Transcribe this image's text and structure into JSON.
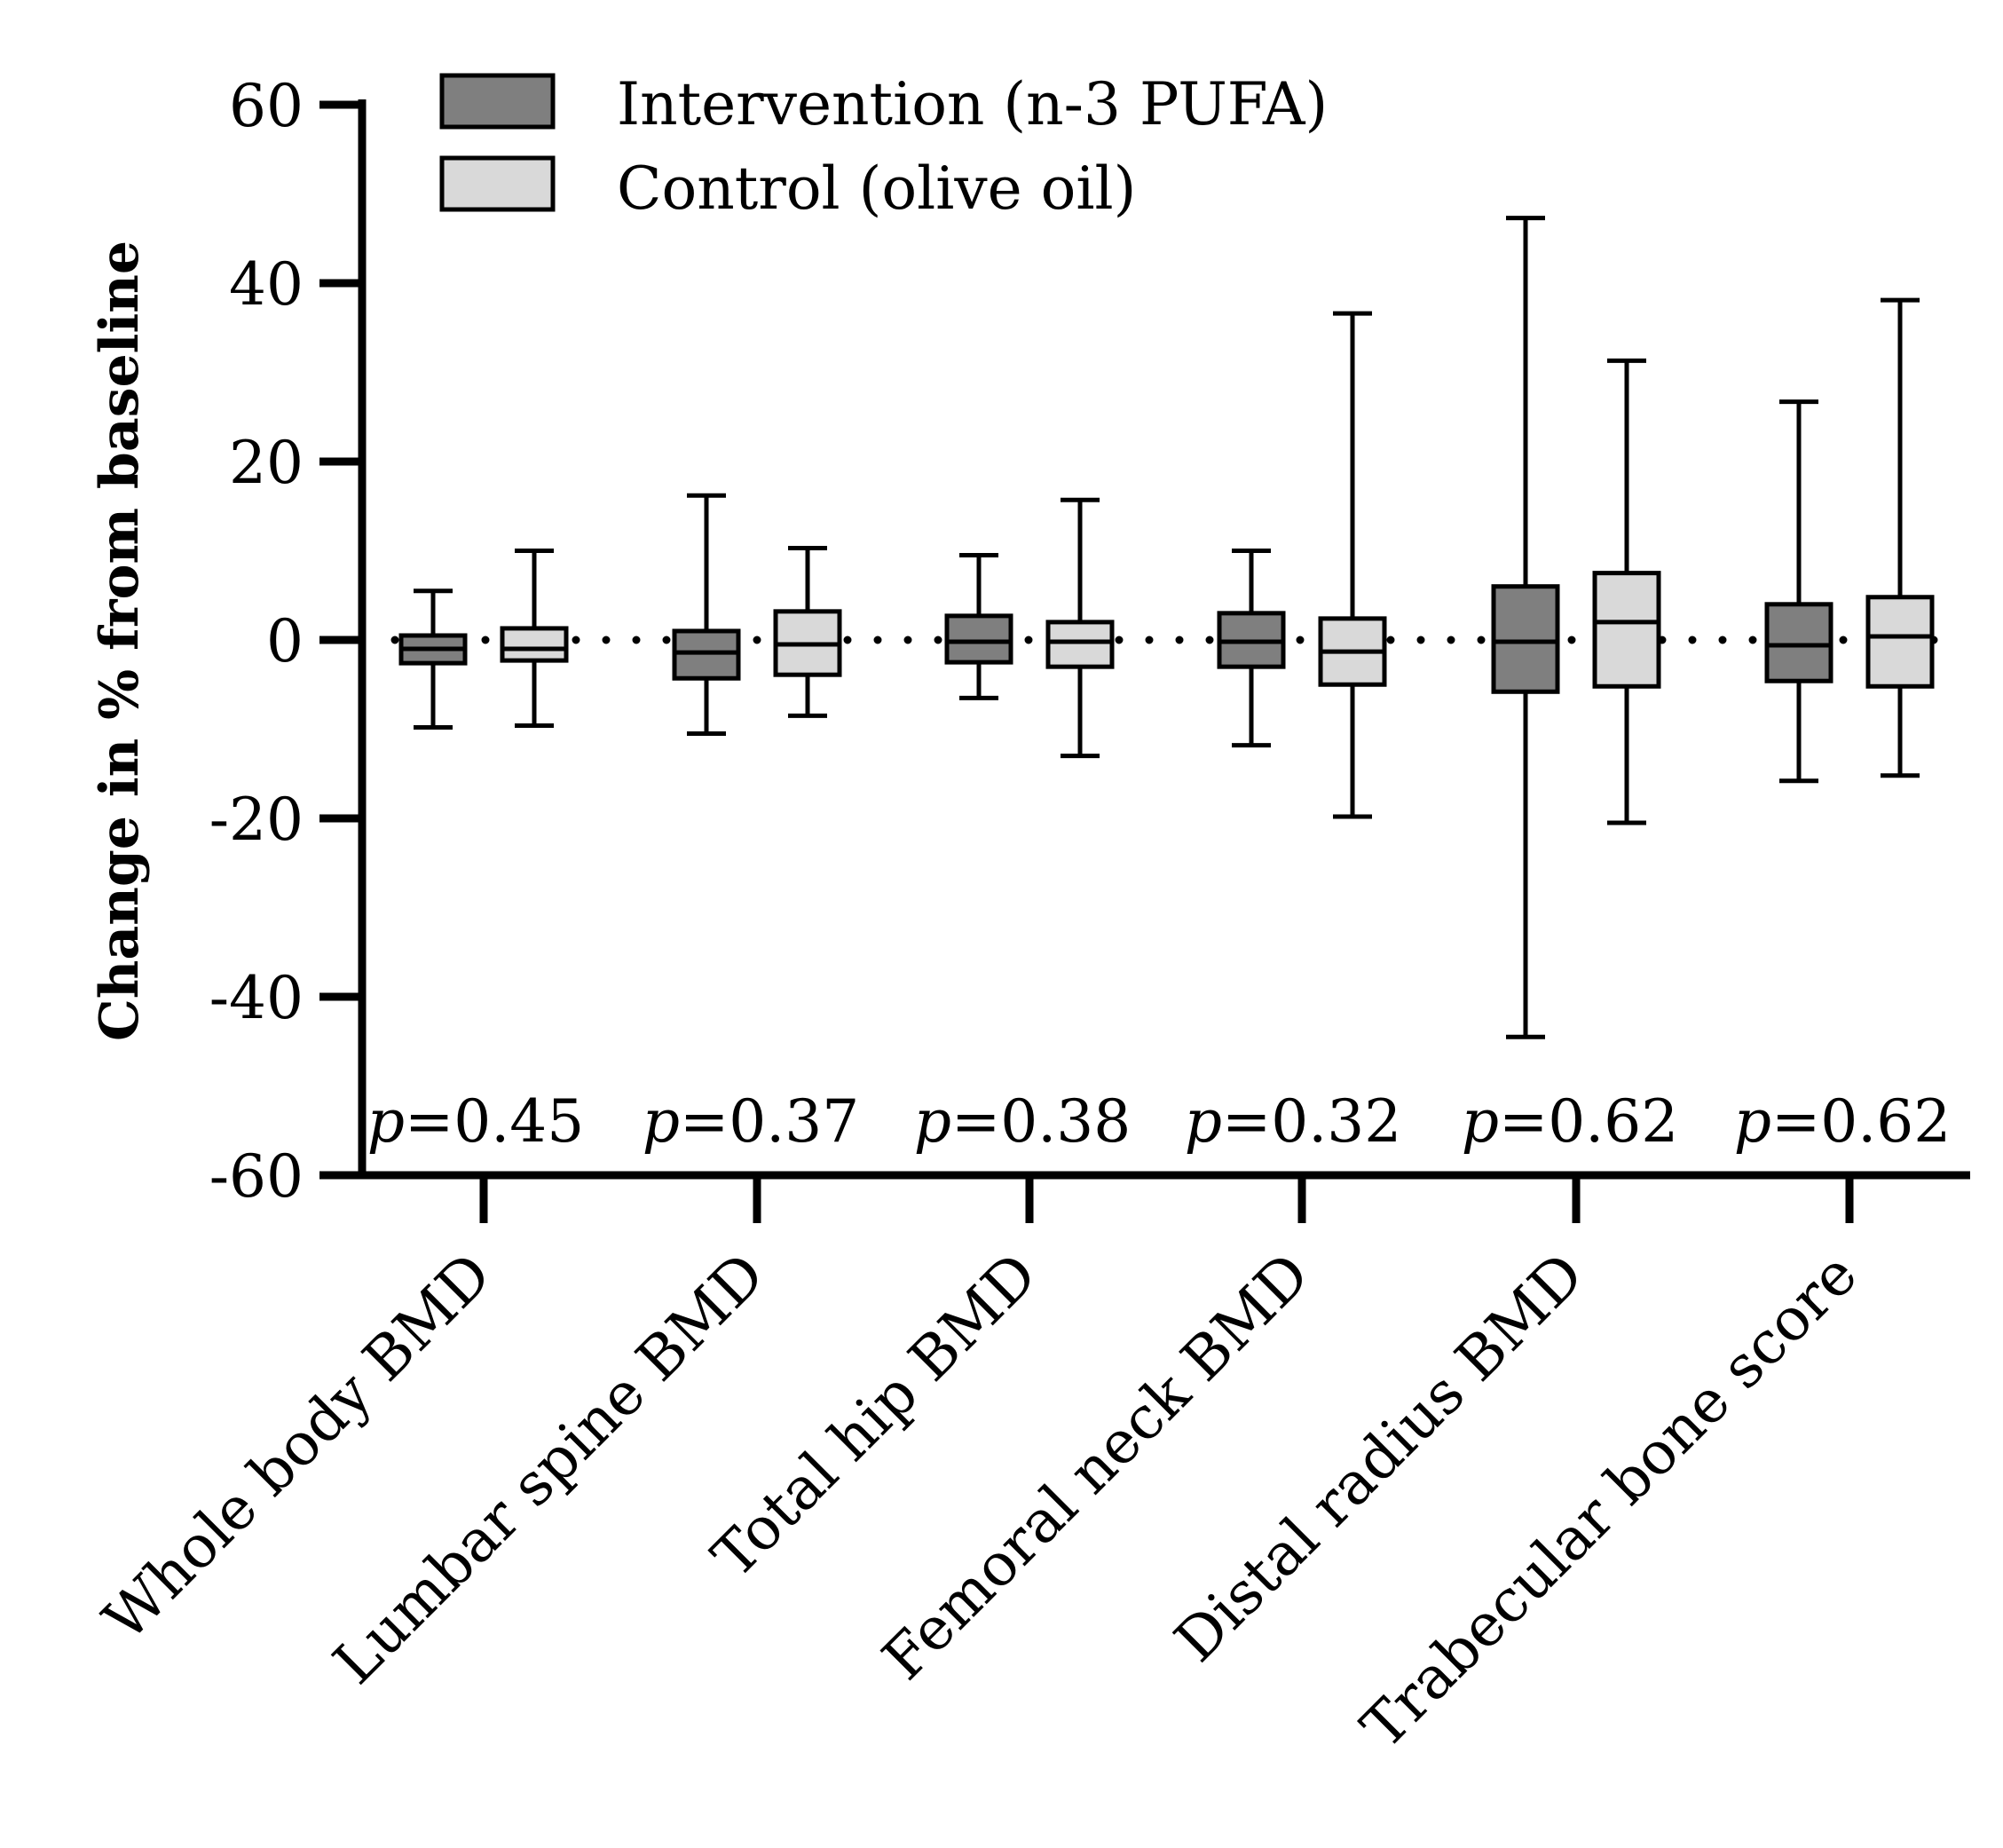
{
  "chart_data": {
    "type": "box",
    "ylabel": "Change in % from baseline",
    "xlabel": "",
    "ylim": [
      -60,
      60
    ],
    "yticks": [
      -60,
      -40,
      -20,
      0,
      20,
      40,
      60
    ],
    "reference_line": {
      "y": 0,
      "style": "dotted"
    },
    "legend": {
      "placement": "top-left",
      "entries": [
        {
          "name": "Intervention (n-3 PUFA)",
          "color": "#7f7f7f"
        },
        {
          "name": "Control (olive oil)",
          "color": "#d9d9d9"
        }
      ]
    },
    "categories": [
      "Whole body BMD",
      "Lumbar spine BMD",
      "Total hip BMD",
      "Femoral neck BMD",
      "Distal radius BMD",
      "Trabecular bone score"
    ],
    "p_prefix": "p",
    "p_values": [
      "=0.45",
      "=0.37",
      "=0.38",
      "=0.32",
      "=0.62",
      "=0.62"
    ],
    "series": [
      {
        "name": "Intervention (n-3 PUFA)",
        "color": "#7f7f7f",
        "boxes": [
          {
            "min": -9.8,
            "q1": -2.6,
            "median": -1.0,
            "q3": 0.5,
            "max": 5.5
          },
          {
            "min": -10.5,
            "q1": -4.3,
            "median": -1.4,
            "q3": 1.0,
            "max": 16.2
          },
          {
            "min": -6.5,
            "q1": -2.5,
            "median": -0.2,
            "q3": 2.7,
            "max": 9.5
          },
          {
            "min": -11.8,
            "q1": -3.0,
            "median": -0.2,
            "q3": 3.0,
            "max": 10.0
          },
          {
            "min": -44.5,
            "q1": -5.8,
            "median": -0.2,
            "q3": 6.0,
            "max": 47.3
          },
          {
            "min": -15.8,
            "q1": -4.6,
            "median": -0.6,
            "q3": 4.0,
            "max": 26.7
          }
        ]
      },
      {
        "name": "Control (olive oil)",
        "color": "#d9d9d9",
        "boxes": [
          {
            "min": -9.6,
            "q1": -2.3,
            "median": -1.0,
            "q3": 1.3,
            "max": 10.0
          },
          {
            "min": -8.5,
            "q1": -3.9,
            "median": -0.5,
            "q3": 3.2,
            "max": 10.3
          },
          {
            "min": -13.0,
            "q1": -3.0,
            "median": -0.2,
            "q3": 2.0,
            "max": 15.7
          },
          {
            "min": -19.8,
            "q1": -5.0,
            "median": -1.3,
            "q3": 2.4,
            "max": 36.6
          },
          {
            "min": -20.5,
            "q1": -5.2,
            "median": 2.0,
            "q3": 7.5,
            "max": 31.3
          },
          {
            "min": -15.2,
            "q1": -5.2,
            "median": 0.4,
            "q3": 4.8,
            "max": 38.1
          }
        ]
      }
    ]
  }
}
